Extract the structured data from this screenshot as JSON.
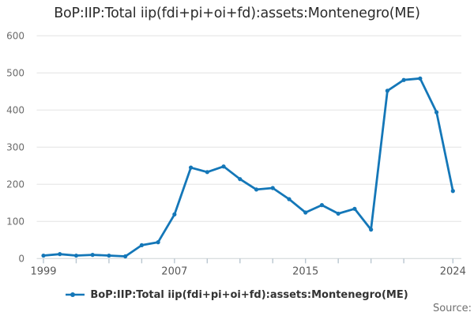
{
  "title": "BoP:IIP:Total iip(fdi+pi+oi+fd):assets:Montenegro(ME)",
  "legend": {
    "label": "BoP:IIP:Total iip(fdi+pi+oi+fd):assets:Montenegro(ME)",
    "marker": "line-with-dot"
  },
  "source_label": "Source:",
  "colors": {
    "line": "#1477b8",
    "marker": "#1477b8",
    "grid": "#e3e3e3",
    "axis": "#cdd3d6",
    "tick": "#b9c6d0",
    "title_text": "#2b2b2b",
    "y_label_text": "#6b6b6b",
    "x_label_text": "#595959",
    "legend_text": "#333333",
    "source_text": "#707070",
    "background": "#ffffff"
  },
  "chart_data": {
    "type": "line",
    "title": "BoP:IIP:Total iip(fdi+pi+oi+fd):assets:Montenegro(ME)",
    "xlabel": "",
    "ylabel": "",
    "x": [
      1999,
      2000,
      2001,
      2002,
      2003,
      2004,
      2005,
      2006,
      2007,
      2008,
      2009,
      2010,
      2011,
      2012,
      2013,
      2014,
      2015,
      2016,
      2017,
      2018,
      2019,
      2020,
      2021,
      2022,
      2023,
      2024
    ],
    "series": [
      {
        "name": "BoP:IIP:Total iip(fdi+pi+oi+fd):assets:Montenegro(ME)",
        "values": [
          8,
          12,
          8,
          10,
          8,
          6,
          36,
          44,
          119,
          245,
          233,
          248,
          214,
          186,
          190,
          160,
          124,
          144,
          121,
          134,
          78,
          452,
          481,
          485,
          394,
          182
        ]
      }
    ],
    "ylim": [
      0,
      600
    ],
    "yticks": [
      0,
      100,
      200,
      300,
      400,
      500,
      600
    ],
    "xtick_years": [
      1999,
      2001,
      2003,
      2005,
      2007,
      2009,
      2011,
      2013,
      2015,
      2017,
      2019,
      2021,
      2024
    ],
    "x_axis_labels": [
      1999,
      2007,
      2015,
      2024
    ],
    "grid": "horizontal",
    "legend_position": "bottom",
    "marker": "circle"
  }
}
